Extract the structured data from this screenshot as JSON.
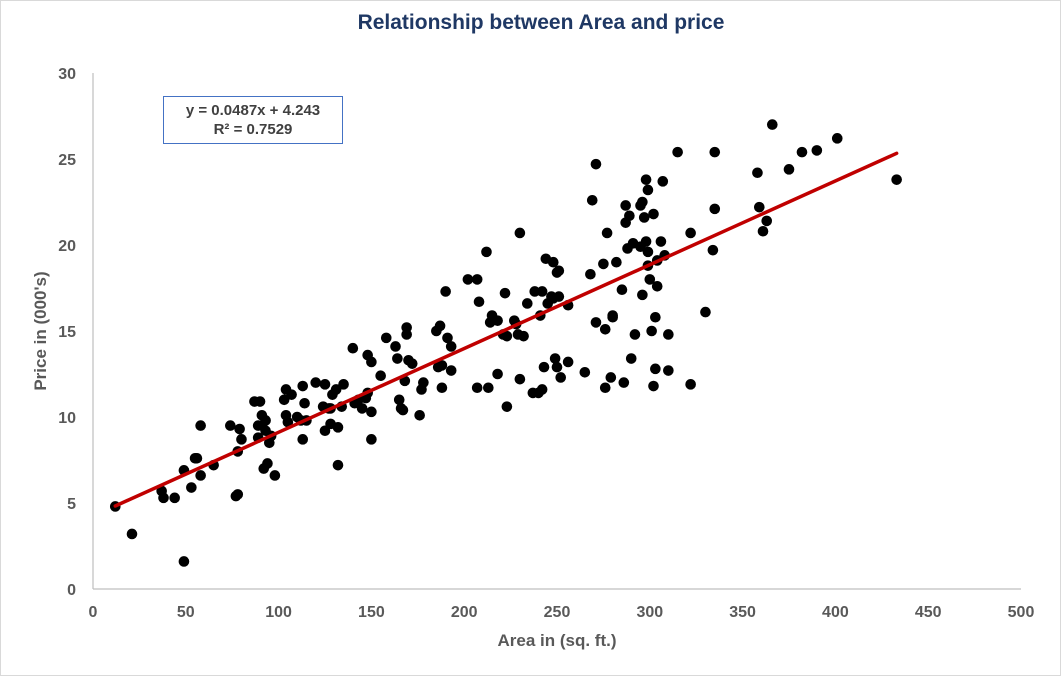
{
  "chart_data": {
    "type": "scatter",
    "title": "Relationship between Area and price",
    "xlabel": "Area in (sq. ft.)",
    "ylabel": "Price in (000's)",
    "xlim": [
      0,
      500
    ],
    "ylim": [
      0,
      30
    ],
    "xticks": [
      0,
      50,
      100,
      150,
      200,
      250,
      300,
      350,
      400,
      450,
      500
    ],
    "yticks": [
      0,
      5,
      10,
      15,
      20,
      25,
      30
    ],
    "grid": false,
    "legend": "none",
    "marker_color": "#000000",
    "trendline": {
      "type": "linear",
      "slope": 0.0487,
      "intercept": 4.243,
      "x_range": [
        12,
        433
      ],
      "color": "#c00000",
      "equation_label": "y = 0.0487x + 4.243",
      "r2_label": "R² = 0.7529"
    },
    "series": [
      {
        "points": [
          [
            12,
            4.8
          ],
          [
            21,
            3.2
          ],
          [
            37,
            5.7
          ],
          [
            38,
            5.3
          ],
          [
            44,
            5.3
          ],
          [
            49,
            1.6
          ],
          [
            49,
            6.9
          ],
          [
            53,
            5.9
          ],
          [
            55,
            7.6
          ],
          [
            56,
            7.6
          ],
          [
            58,
            9.5
          ],
          [
            58,
            6.6
          ],
          [
            65,
            7.2
          ],
          [
            74,
            9.5
          ],
          [
            77,
            5.4
          ],
          [
            78,
            5.5
          ],
          [
            78,
            8.0
          ],
          [
            79,
            9.3
          ],
          [
            80,
            8.7
          ],
          [
            87,
            10.9
          ],
          [
            89,
            8.8
          ],
          [
            89,
            9.5
          ],
          [
            90,
            10.9
          ],
          [
            91,
            9.5
          ],
          [
            91,
            10.1
          ],
          [
            92,
            7.0
          ],
          [
            93,
            9.8
          ],
          [
            93,
            9.2
          ],
          [
            94,
            7.3
          ],
          [
            95,
            8.5
          ],
          [
            96,
            8.9
          ],
          [
            98,
            6.6
          ],
          [
            103,
            11.0
          ],
          [
            104,
            11.6
          ],
          [
            104,
            10.1
          ],
          [
            105,
            9.7
          ],
          [
            107,
            11.3
          ],
          [
            110,
            10.0
          ],
          [
            112,
            9.8
          ],
          [
            113,
            8.7
          ],
          [
            113,
            11.8
          ],
          [
            114,
            10.8
          ],
          [
            115,
            9.8
          ],
          [
            120,
            12.0
          ],
          [
            124,
            10.6
          ],
          [
            125,
            11.9
          ],
          [
            125,
            9.2
          ],
          [
            127,
            10.5
          ],
          [
            128,
            10.5
          ],
          [
            128,
            9.6
          ],
          [
            129,
            11.3
          ],
          [
            131,
            11.6
          ],
          [
            132,
            7.2
          ],
          [
            132,
            9.4
          ],
          [
            134,
            10.6
          ],
          [
            135,
            11.9
          ],
          [
            140,
            14.0
          ],
          [
            141,
            10.8
          ],
          [
            143,
            11.0
          ],
          [
            145,
            10.5
          ],
          [
            147,
            11.1
          ],
          [
            148,
            13.6
          ],
          [
            148,
            11.4
          ],
          [
            150,
            10.3
          ],
          [
            150,
            8.7
          ],
          [
            150,
            13.2
          ],
          [
            155,
            12.4
          ],
          [
            158,
            14.6
          ],
          [
            163,
            14.1
          ],
          [
            164,
            13.4
          ],
          [
            165,
            11.0
          ],
          [
            166,
            10.5
          ],
          [
            167,
            10.4
          ],
          [
            168,
            12.1
          ],
          [
            169,
            14.8
          ],
          [
            169,
            15.2
          ],
          [
            170,
            13.3
          ],
          [
            172,
            13.1
          ],
          [
            176,
            10.1
          ],
          [
            177,
            11.6
          ],
          [
            178,
            12.0
          ],
          [
            185,
            15.0
          ],
          [
            186,
            12.9
          ],
          [
            187,
            15.3
          ],
          [
            188,
            13.0
          ],
          [
            188,
            11.7
          ],
          [
            190,
            17.3
          ],
          [
            191,
            14.6
          ],
          [
            193,
            12.7
          ],
          [
            193,
            14.1
          ],
          [
            202,
            18.0
          ],
          [
            207,
            18.0
          ],
          [
            207,
            11.7
          ],
          [
            208,
            16.7
          ],
          [
            212,
            19.6
          ],
          [
            213,
            11.7
          ],
          [
            214,
            15.5
          ],
          [
            215,
            15.9
          ],
          [
            218,
            15.6
          ],
          [
            218,
            12.5
          ],
          [
            221,
            14.8
          ],
          [
            222,
            17.2
          ],
          [
            223,
            10.6
          ],
          [
            223,
            14.7
          ],
          [
            227,
            15.6
          ],
          [
            228,
            15.4
          ],
          [
            229,
            14.8
          ],
          [
            230,
            20.7
          ],
          [
            230,
            12.2
          ],
          [
            232,
            14.7
          ],
          [
            234,
            16.6
          ],
          [
            237,
            11.4
          ],
          [
            238,
            17.3
          ],
          [
            240,
            11.4
          ],
          [
            241,
            15.9
          ],
          [
            242,
            17.3
          ],
          [
            242,
            11.6
          ],
          [
            243,
            12.9
          ],
          [
            244,
            19.2
          ],
          [
            245,
            16.6
          ],
          [
            247,
            17.0
          ],
          [
            248,
            16.9
          ],
          [
            248,
            19.0
          ],
          [
            249,
            13.4
          ],
          [
            250,
            12.9
          ],
          [
            250,
            18.4
          ],
          [
            251,
            18.5
          ],
          [
            251,
            17.0
          ],
          [
            252,
            12.3
          ],
          [
            256,
            13.2
          ],
          [
            256,
            16.5
          ],
          [
            265,
            12.6
          ],
          [
            268,
            18.3
          ],
          [
            269,
            22.6
          ],
          [
            271,
            15.5
          ],
          [
            271,
            24.7
          ],
          [
            275,
            18.9
          ],
          [
            276,
            11.7
          ],
          [
            276,
            15.1
          ],
          [
            277,
            20.7
          ],
          [
            279,
            12.3
          ],
          [
            280,
            15.9
          ],
          [
            280,
            15.8
          ],
          [
            282,
            19.0
          ],
          [
            285,
            17.4
          ],
          [
            286,
            12.0
          ],
          [
            287,
            21.3
          ],
          [
            287,
            22.3
          ],
          [
            288,
            19.8
          ],
          [
            289,
            21.7
          ],
          [
            290,
            13.4
          ],
          [
            291,
            20.1
          ],
          [
            292,
            14.8
          ],
          [
            295,
            22.3
          ],
          [
            295,
            19.9
          ],
          [
            296,
            22.5
          ],
          [
            296,
            17.1
          ],
          [
            297,
            21.6
          ],
          [
            298,
            20.2
          ],
          [
            298,
            23.8
          ],
          [
            299,
            18.8
          ],
          [
            299,
            23.2
          ],
          [
            299,
            19.6
          ],
          [
            300,
            18.0
          ],
          [
            301,
            15.0
          ],
          [
            302,
            21.8
          ],
          [
            302,
            11.8
          ],
          [
            303,
            12.8
          ],
          [
            303,
            15.8
          ],
          [
            304,
            17.6
          ],
          [
            304,
            19.1
          ],
          [
            306,
            20.2
          ],
          [
            307,
            23.7
          ],
          [
            308,
            19.4
          ],
          [
            310,
            14.8
          ],
          [
            310,
            12.7
          ],
          [
            315,
            25.4
          ],
          [
            322,
            20.7
          ],
          [
            322,
            11.9
          ],
          [
            330,
            16.1
          ],
          [
            334,
            19.7
          ],
          [
            335,
            25.4
          ],
          [
            335,
            22.1
          ],
          [
            358,
            24.2
          ],
          [
            359,
            22.2
          ],
          [
            361,
            20.8
          ],
          [
            363,
            21.4
          ],
          [
            366,
            27.0
          ],
          [
            375,
            24.4
          ],
          [
            382,
            25.4
          ],
          [
            390,
            25.5
          ],
          [
            401,
            26.2
          ],
          [
            433,
            23.8
          ]
        ]
      }
    ]
  }
}
